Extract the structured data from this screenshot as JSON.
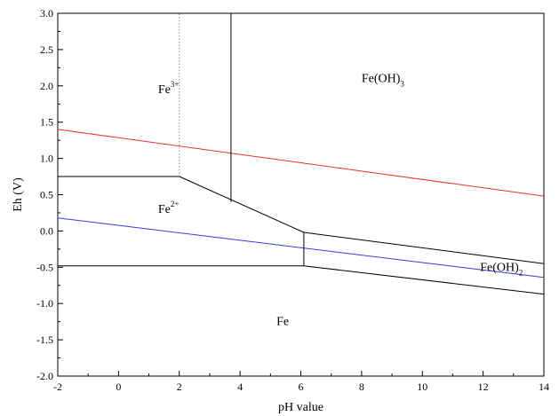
{
  "chart_data": {
    "type": "line",
    "title": "",
    "xlabel": "pH value",
    "ylabel": "Eh (V)",
    "xlim": [
      -2,
      14
    ],
    "ylim": [
      -2.0,
      3.0
    ],
    "x_major_ticks": [
      -2,
      0,
      2,
      4,
      6,
      8,
      10,
      12,
      14
    ],
    "x_tick_labels": [
      "-2",
      "0",
      "2",
      "4",
      "6",
      "8",
      "10",
      "12",
      "14"
    ],
    "y_major_ticks": [
      -2.0,
      -1.5,
      -1.0,
      -0.5,
      0.0,
      0.5,
      1.0,
      1.5,
      2.0,
      2.5,
      3.0
    ],
    "y_tick_labels": [
      "-2.0",
      "-1.5",
      "-1.0",
      "-0.5",
      "0.0",
      "0.5",
      "1.0",
      "1.5",
      "2.0",
      "2.5",
      "3.0"
    ],
    "grid": false,
    "lines": [
      {
        "id": "o2-water-line",
        "color": "#e8322c",
        "dash": "solid",
        "points": [
          [
            -2,
            1.4
          ],
          [
            14,
            0.48
          ]
        ]
      },
      {
        "id": "h2-water-line",
        "color": "#3a3ad6",
        "dash": "solid",
        "points": [
          [
            -2,
            0.18
          ],
          [
            14,
            -0.64
          ]
        ]
      },
      {
        "id": "fe3-fe2-boundary",
        "color": "#000000",
        "dash": "solid",
        "points": [
          [
            -2,
            0.75
          ],
          [
            2,
            0.75
          ]
        ]
      },
      {
        "id": "fe3-fe2-solubility-boundary",
        "color": "#888888",
        "dash": "dotted",
        "points": [
          [
            2,
            0.75
          ],
          [
            2,
            3.0
          ]
        ]
      },
      {
        "id": "fe3-feoh3-boundary",
        "color": "#000000",
        "dash": "solid",
        "points": [
          [
            3.7,
            3.0
          ],
          [
            3.7,
            0.4
          ]
        ]
      },
      {
        "id": "feoh3-fe2-boundary",
        "color": "#000000",
        "dash": "solid",
        "points": [
          [
            2,
            0.75
          ],
          [
            6.1,
            -0.02
          ]
        ]
      },
      {
        "id": "fe2-fe-boundary",
        "color": "#000000",
        "dash": "solid",
        "points": [
          [
            -2,
            -0.48
          ],
          [
            6.1,
            -0.48
          ]
        ]
      },
      {
        "id": "fe2-feoh2-boundary",
        "color": "#000000",
        "dash": "solid",
        "points": [
          [
            6.1,
            -0.48
          ],
          [
            6.1,
            -0.02
          ]
        ]
      },
      {
        "id": "feoh3-feoh2-boundary",
        "color": "#000000",
        "dash": "solid",
        "points": [
          [
            6.1,
            -0.02
          ],
          [
            14,
            -0.45
          ]
        ]
      },
      {
        "id": "feoh2-fe-boundary",
        "color": "#000000",
        "dash": "solid",
        "points": [
          [
            6.1,
            -0.48
          ],
          [
            14,
            -0.87
          ]
        ]
      }
    ],
    "annotations": [
      {
        "id": "fe3",
        "base": "Fe",
        "sup": "3+",
        "sub": "",
        "x": 1.3,
        "y": 1.9
      },
      {
        "id": "feoh3",
        "base": "Fe(OH)",
        "sup": "",
        "sub": "3",
        "x": 8.0,
        "y": 2.05
      },
      {
        "id": "fe2",
        "base": "Fe",
        "sup": "2+",
        "sub": "",
        "x": 1.3,
        "y": 0.25
      },
      {
        "id": "feoh2",
        "base": "Fe(OH)",
        "sup": "",
        "sub": "2",
        "x": 11.9,
        "y": -0.55
      },
      {
        "id": "fe",
        "base": "Fe",
        "sup": "",
        "sub": "",
        "x": 5.2,
        "y": -1.3
      }
    ]
  }
}
